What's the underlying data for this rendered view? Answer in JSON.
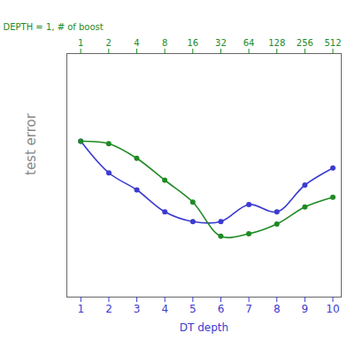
{
  "chart_data": {
    "type": "line",
    "x_label": "DT depth",
    "y_label": "test error",
    "x2_label": "DEPTH = 1, # of boost",
    "xlim": [
      0.5,
      10.3
    ],
    "xticks": [
      1,
      2,
      3,
      4,
      5,
      6,
      7,
      8,
      9,
      10
    ],
    "x2lim": [
      0.71,
      630
    ],
    "x2ticks": [
      1,
      2,
      4,
      8,
      16,
      32,
      64,
      128,
      256,
      512
    ],
    "log": "x2",
    "ylim": [
      0,
      10
    ],
    "tick_labels": "x",
    "series": [
      {
        "color": "#3b3bd0",
        "marker": "circle",
        "line_style": "solid",
        "x": [
          1,
          2,
          3,
          4,
          5,
          6,
          7,
          8,
          9,
          10
        ],
        "values": [
          6.4,
          5.1,
          4.4,
          3.5,
          3.1,
          3.1,
          3.8,
          3.5,
          4.6,
          5.3
        ]
      },
      {
        "color": "#1f8a24",
        "marker": "circle",
        "line_style": "solid",
        "axis": "x2",
        "x": [
          1,
          2,
          4,
          8,
          16,
          32,
          64,
          128,
          256,
          512
        ],
        "values": [
          6.4,
          6.3,
          5.7,
          4.8,
          3.9,
          2.5,
          2.6,
          3.0,
          3.7,
          4.1
        ]
      }
    ]
  }
}
